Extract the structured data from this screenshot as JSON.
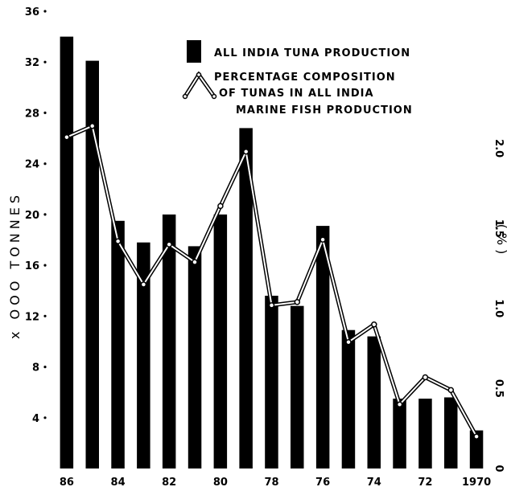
{
  "chart_data": {
    "type": "bar",
    "categories": [
      "1986",
      "1985",
      "1984",
      "1983",
      "1982",
      "1981",
      "1980",
      "1979",
      "1978",
      "1977",
      "1976",
      "1975",
      "1974",
      "1973",
      "1972",
      "1971",
      "1970"
    ],
    "x_tick_labels": [
      "86",
      "",
      "84",
      "",
      "82",
      "",
      "80",
      "",
      "78",
      "",
      "76",
      "",
      "74",
      "",
      "72",
      "",
      "1970"
    ],
    "series": [
      {
        "name": "ALL INDIA TUNA PRODUCTION",
        "type": "bar",
        "axis": "left",
        "values": [
          34.0,
          32.1,
          19.5,
          17.8,
          20.0,
          17.5,
          20.0,
          26.8,
          13.6,
          12.8,
          19.1,
          10.9,
          10.4,
          5.5,
          5.5,
          5.6,
          3.0
        ]
      },
      {
        "name": "PERCENTAGE COMPOSITION OF TUNAS IN ALL INDIA MARINE FISH PRODUCTION",
        "type": "line",
        "axis": "right",
        "values": [
          2.07,
          2.14,
          1.42,
          1.15,
          1.4,
          1.29,
          1.64,
          1.98,
          1.02,
          1.04,
          1.43,
          0.79,
          0.9,
          0.4,
          0.57,
          0.49,
          0.2
        ]
      }
    ],
    "y_left": {
      "label": "x OOO   TONNES",
      "ticks": [
        "4",
        "8",
        "12",
        "16",
        "20",
        "24",
        "28",
        "32",
        "36"
      ],
      "ylim": [
        0,
        36
      ]
    },
    "y_right": {
      "label": "(%)",
      "ticks": [
        "0",
        "0.5",
        "1.0",
        "1.5",
        "2.0"
      ],
      "ylim": [
        0,
        2.857
      ]
    },
    "legend": {
      "bar_label": "ALL INDIA TUNA PRODUCTION",
      "line_label_1": "PERCENTAGE COMPOSITION",
      "line_label_2": "OF TUNAS IN ALL INDIA",
      "line_label_3": "MARINE FISH PRODUCTION",
      "position": "top-right"
    },
    "grid": false,
    "colors": {
      "bar": "#000000",
      "line": "#ffffff",
      "line_outline": "#000000"
    }
  }
}
